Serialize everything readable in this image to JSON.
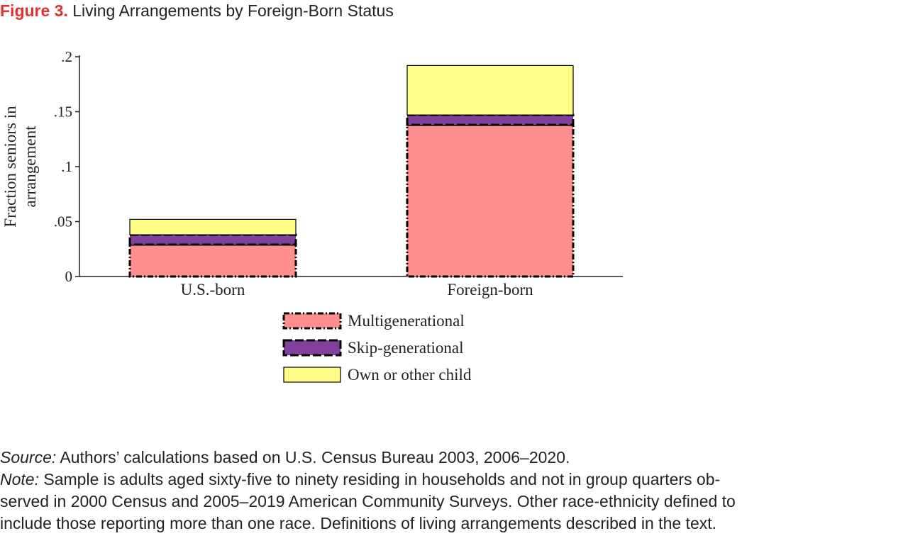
{
  "figure": {
    "label": "Figure 3.",
    "title": "Living Arrangements by Foreign-Born Status"
  },
  "chart_data": {
    "type": "bar",
    "stacked": true,
    "categories": [
      "U.S.-born",
      "Foreign-born"
    ],
    "series": [
      {
        "name": "Multigenerational",
        "values": [
          0.029,
          0.138
        ],
        "color": "#ff8e8e",
        "border": "dash-dot"
      },
      {
        "name": "Skip-generational",
        "values": [
          0.009,
          0.009
        ],
        "color": "#80409c",
        "border": "dashed"
      },
      {
        "name": "Own or other child",
        "values": [
          0.014,
          0.045
        ],
        "color": "#ffff88",
        "border": "solid"
      }
    ],
    "ylabel": "Fraction seniors in arrangement",
    "ylabel_lines": [
      "Fraction seniors in",
      "arrangement"
    ],
    "xlabel": "",
    "ylim": [
      0,
      0.2
    ],
    "yticks": [
      0,
      0.05,
      0.1,
      0.15,
      0.2
    ],
    "ytick_labels": [
      "0",
      ".05",
      ".1",
      ".15",
      ".2"
    ],
    "grid": false,
    "legend_position": "bottom-center"
  },
  "notes": {
    "source_label": "Source:",
    "source_text": " Authors’ calculations based on U.S. Census Bureau 2003, 2006–2020.",
    "note_label": "Note:",
    "note_line1": " Sample is adults aged sixty-five to ninety residing in households and not in group quarters ob-",
    "note_line2": "served in 2000 Census and 2005–2019 American Community Surveys. Other race-ethnicity defined to",
    "note_line3": "include those reporting more than one race. Definitions of living arrangements described in the text."
  }
}
